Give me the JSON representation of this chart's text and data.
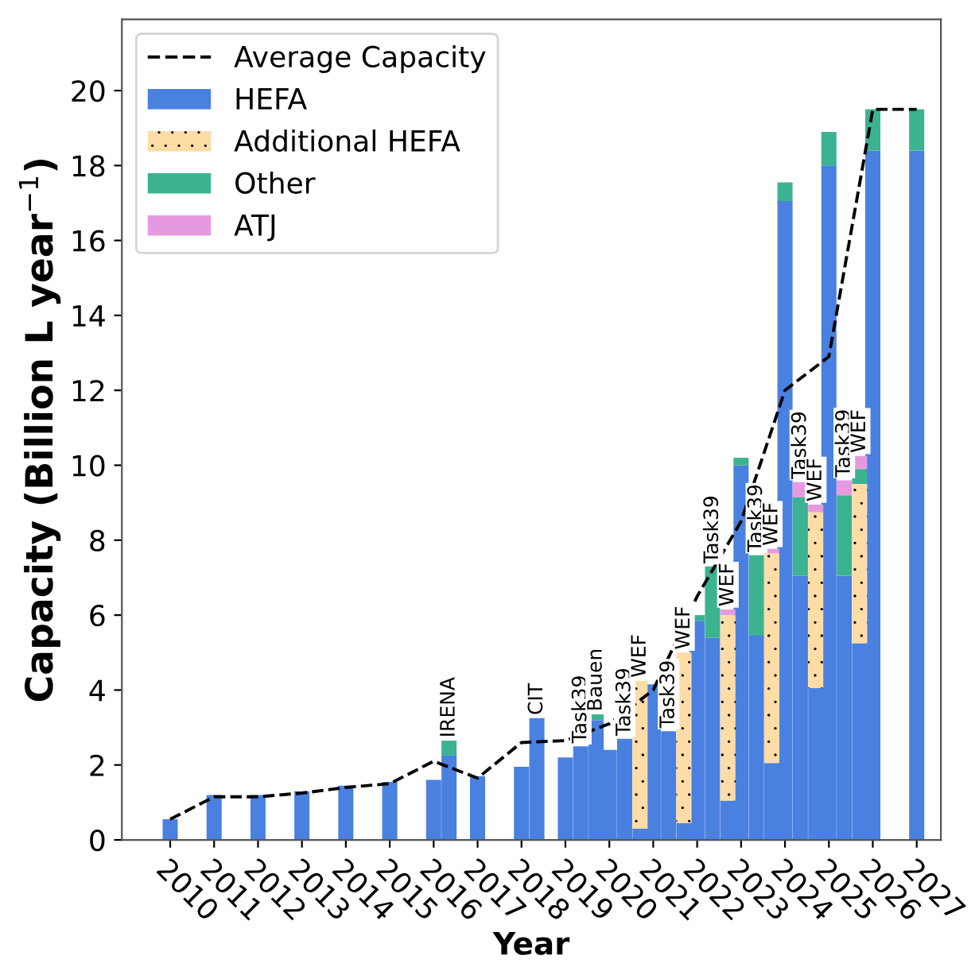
{
  "chart_data": {
    "type": "bar",
    "stacked": true,
    "xlabel": "Year",
    "ylabel": "Capacity (Billion L year$^{−1}$)",
    "x": [
      2010,
      2011,
      2012,
      2013,
      2014,
      2015,
      2016,
      2016.35,
      2017,
      2018,
      2018.35,
      2019,
      2019.35,
      2019.7,
      2020,
      2020.35,
      2020.7,
      2021,
      2021.35,
      2021.7,
      2022,
      2022.35,
      2022.7,
      2023,
      2023.35,
      2023.7,
      2024,
      2024.35,
      2024.7,
      2025,
      2025.35,
      2025.7,
      2026,
      2027
    ],
    "series": [
      {
        "name": "Average Capacity",
        "type": "line",
        "color": "#000000",
        "line_style": "dashed",
        "marker": "none",
        "x": [
          2010,
          2011,
          2012,
          2013,
          2014,
          2015,
          2016,
          2017,
          2018,
          2019,
          2020,
          2021,
          2022,
          2023,
          2024,
          2025,
          2026,
          2027
        ],
        "values": [
          0.55,
          1.15,
          1.15,
          1.25,
          1.4,
          1.5,
          2.1,
          1.65,
          2.6,
          2.65,
          3.1,
          4.0,
          6.5,
          8.5,
          12.0,
          12.9,
          19.5,
          19.5
        ]
      },
      {
        "name": "HEFA",
        "color": "#4a80e0",
        "values": [
          0.55,
          1.2,
          1.2,
          1.3,
          1.45,
          1.55,
          1.6,
          2.25,
          1.7,
          1.95,
          3.25,
          2.2,
          2.5,
          3.2,
          2.4,
          2.7,
          0.3,
          4.15,
          2.9,
          0.45,
          5.85,
          5.4,
          1.05,
          10.0,
          5.45,
          2.05,
          17.05,
          7.05,
          4.05,
          18.0,
          7.05,
          5.25,
          18.4,
          18.4
        ]
      },
      {
        "name": "Additional HEFA",
        "color": "#fddca6",
        "values": [
          null,
          null,
          null,
          null,
          null,
          null,
          null,
          null,
          null,
          null,
          null,
          null,
          null,
          null,
          null,
          null,
          3.95,
          null,
          null,
          4.55,
          null,
          null,
          4.95,
          null,
          null,
          5.6,
          null,
          null,
          4.7,
          null,
          null,
          4.25,
          null,
          null
        ]
      },
      {
        "name": "Other",
        "color": "#3bb391",
        "values": [
          null,
          null,
          null,
          null,
          null,
          null,
          null,
          0.4,
          null,
          null,
          null,
          null,
          null,
          0.15,
          null,
          null,
          null,
          null,
          null,
          null,
          0.15,
          1.9,
          null,
          0.2,
          2.15,
          null,
          0.5,
          2.1,
          null,
          0.9,
          2.15,
          0.4,
          1.1,
          1.1
        ]
      },
      {
        "name": "ATJ",
        "color": "#e59ae0",
        "values": [
          null,
          null,
          null,
          null,
          null,
          null,
          null,
          null,
          null,
          null,
          null,
          null,
          null,
          null,
          null,
          null,
          null,
          null,
          null,
          null,
          null,
          null,
          0.15,
          null,
          null,
          0.12,
          null,
          0.4,
          0.2,
          null,
          0.4,
          0.35,
          null,
          null
        ]
      }
    ],
    "xlim": [
      2008.9,
      2027.55
    ],
    "xticks": [
      2010,
      2011,
      2012,
      2013,
      2014,
      2015,
      2016,
      2017,
      2018,
      2019,
      2020,
      2021,
      2022,
      2023,
      2024,
      2025,
      2026,
      2027
    ],
    "ylim": [
      0,
      21.9
    ],
    "yticks": [
      0,
      2,
      4,
      6,
      8,
      10,
      12,
      14,
      16,
      18,
      20
    ],
    "grid": false,
    "legend": "top left",
    "annotations": [
      {
        "text": "IRENA",
        "x": 2016.35,
        "y": 2.65
      },
      {
        "text": "CIT",
        "x": 2018.35,
        "y": 3.25
      },
      {
        "text": "Task39",
        "x": 2019.35,
        "y": 2.5
      },
      {
        "text": "Bauen",
        "x": 2019.7,
        "y": 3.35
      },
      {
        "text": "Task39",
        "x": 2020.35,
        "y": 2.7
      },
      {
        "text": "WEF",
        "x": 2020.7,
        "y": 4.25
      },
      {
        "text": "Task39",
        "x": 2021.35,
        "y": 2.9
      },
      {
        "text": "WEF",
        "x": 2021.7,
        "y": 5.0
      },
      {
        "text": "Task39",
        "x": 2022.35,
        "y": 7.3
      },
      {
        "text": "WEF",
        "x": 2022.7,
        "y": 6.15
      },
      {
        "text": "Task39",
        "x": 2023.35,
        "y": 7.6
      },
      {
        "text": "WEF",
        "x": 2023.7,
        "y": 7.77
      },
      {
        "text": "Task39",
        "x": 2024.35,
        "y": 9.55
      },
      {
        "text": "WEF",
        "x": 2024.7,
        "y": 8.95
      },
      {
        "text": "Task39",
        "x": 2025.35,
        "y": 9.6
      },
      {
        "text": "WEF",
        "x": 2025.7,
        "y": 10.25
      }
    ]
  }
}
